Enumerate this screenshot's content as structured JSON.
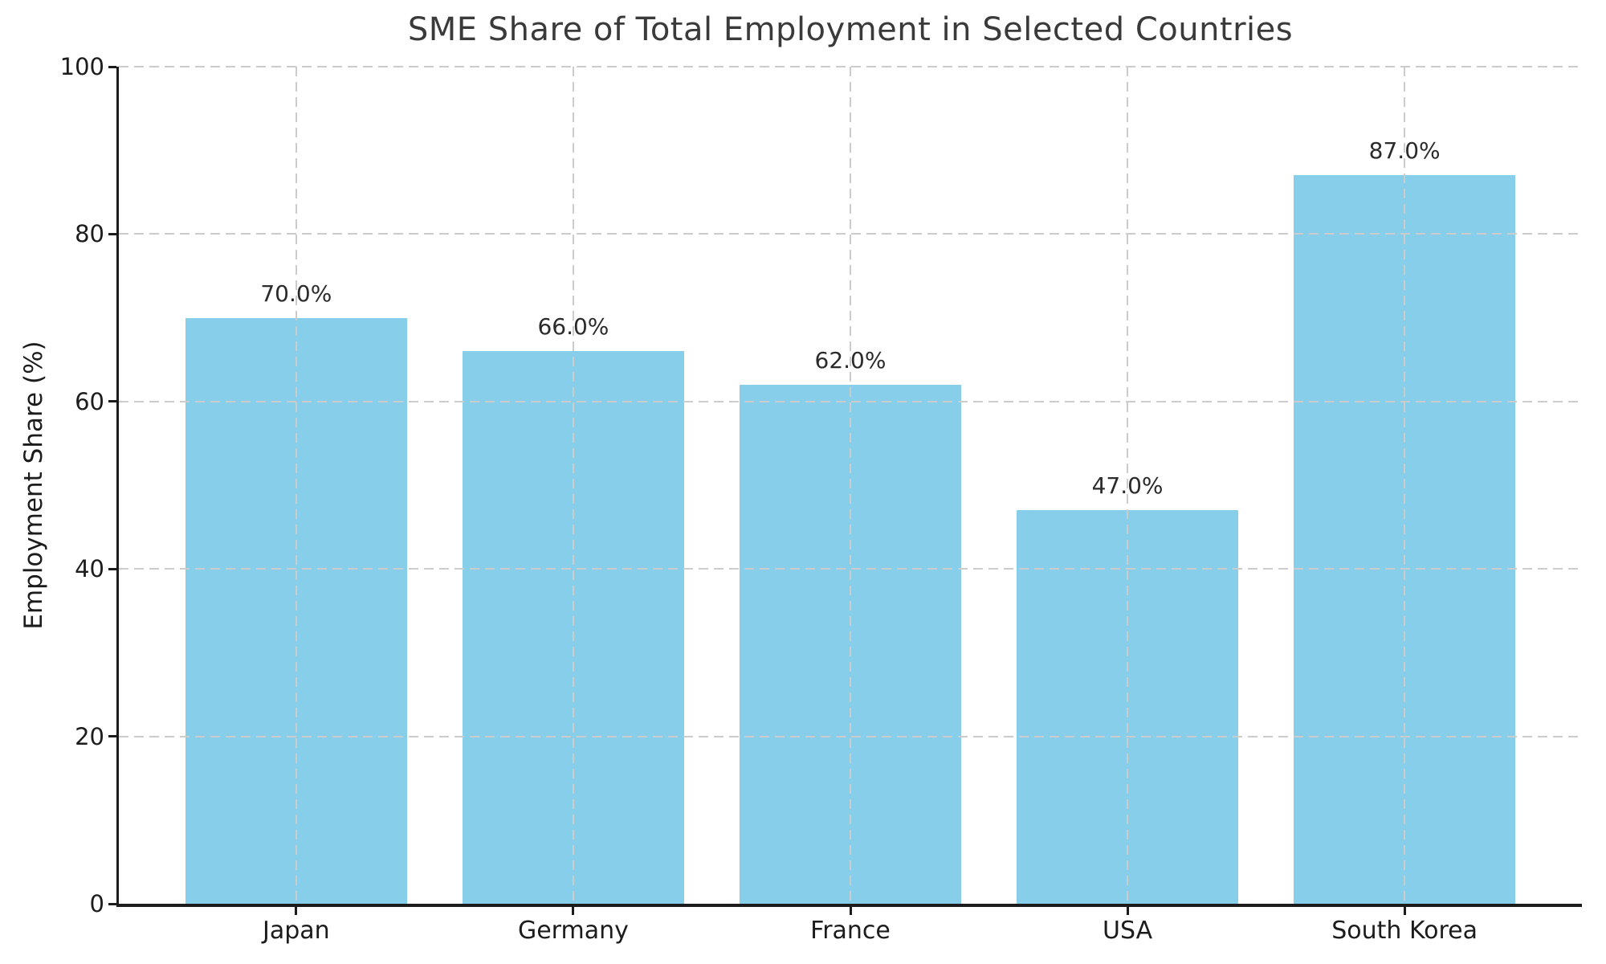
{
  "chart_data": {
    "type": "bar",
    "title": "SME Share of Total Employment in Selected Countries",
    "categories": [
      "Japan",
      "Germany",
      "France",
      "USA",
      "South Korea"
    ],
    "values": [
      70.0,
      66.0,
      62.0,
      47.0,
      87.0
    ],
    "bar_labels": [
      "70.0%",
      "66.0%",
      "62.0%",
      "47.0%",
      "87.0%"
    ],
    "xlabel": "",
    "ylabel": "Employment Share (%)",
    "ylim": [
      0,
      100
    ],
    "yticks": [
      0,
      20,
      40,
      60,
      80,
      100
    ],
    "ytick_labels": [
      "0",
      "20",
      "40",
      "60",
      "80",
      "100"
    ],
    "grid": "dashed, horizontal and vertical, drawn above bars",
    "legend": "none",
    "bar_color": "#87CEEB",
    "grid_color": "#cccccc",
    "axis_color": "#1c1c1c",
    "title_color": "#3a3a3a"
  }
}
